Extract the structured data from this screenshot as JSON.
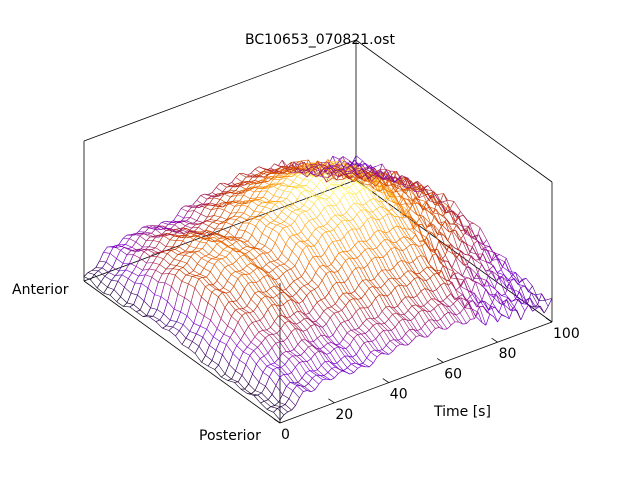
{
  "chart_data": {
    "type": "surface",
    "title": "BC10653_070821.ost",
    "xlabel": "Time [s]",
    "y_end_labels": [
      "Anterior",
      "Posterior"
    ],
    "x_ticks": [
      "0",
      "20",
      "40",
      "60",
      "80",
      "100"
    ],
    "xlim": [
      0,
      100
    ],
    "colormap": [
      "#000000",
      "#7a00d8",
      "#c03000",
      "#ff8800",
      "#ffff66"
    ],
    "surface_profile": {
      "t": [
        0,
        10,
        20,
        30,
        40,
        50,
        60,
        70,
        80,
        90,
        100
      ],
      "relative_height": [
        0.06,
        0.4,
        0.5,
        0.45,
        0.6,
        0.68,
        0.72,
        0.68,
        0.5,
        0.42,
        0.3
      ]
    },
    "grid": false
  }
}
